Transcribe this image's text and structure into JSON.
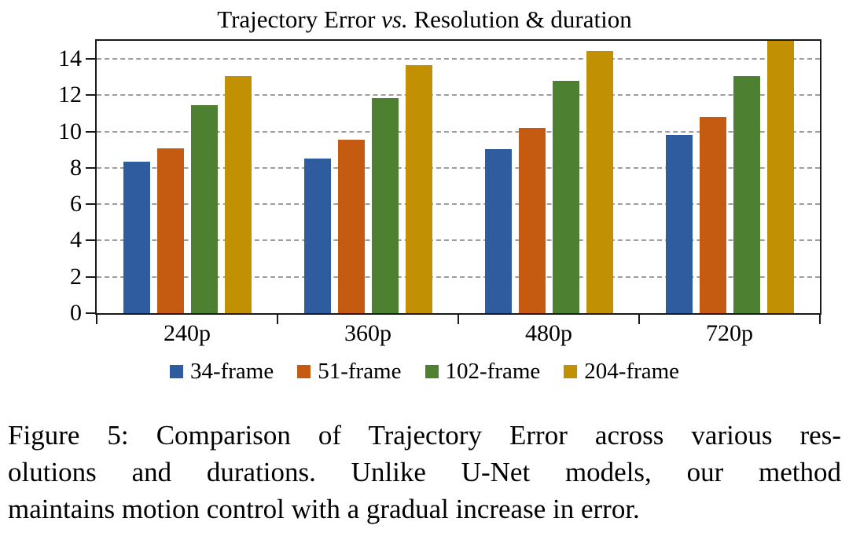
{
  "title": {
    "prefix": "Trajectory Error ",
    "vs": "vs.",
    "suffix": " Resolution & duration"
  },
  "chart_data": {
    "type": "bar",
    "title": "Trajectory Error vs. Resolution & duration",
    "categories": [
      "240p",
      "360p",
      "480p",
      "720p"
    ],
    "series": [
      {
        "name": "34-frame",
        "color": "#2E5C9F",
        "values": [
          8.35,
          8.5,
          9.05,
          9.8
        ]
      },
      {
        "name": "51-frame",
        "color": "#C55A11",
        "values": [
          9.1,
          9.55,
          10.2,
          10.8
        ]
      },
      {
        "name": "102-frame",
        "color": "#4E8032",
        "values": [
          11.45,
          11.85,
          12.8,
          13.05
        ]
      },
      {
        "name": "204-frame",
        "color": "#C19103",
        "values": [
          13.05,
          13.65,
          14.45,
          15.0
        ]
      }
    ],
    "xlabel": "",
    "ylabel": "",
    "ylim": [
      0,
      15
    ],
    "yticks": [
      0,
      2,
      4,
      6,
      8,
      10,
      12,
      14
    ],
    "grid": "horizontal-dashed",
    "legend_position": "bottom"
  },
  "caption": {
    "lines": [
      "Figure 5: Comparison of Trajectory Error across various res-",
      "olutions and durations. Unlike U-Net models, our method",
      "maintains motion control with a gradual increase in error."
    ]
  },
  "colors": {
    "background": "#FFFFFF",
    "axis": "#1A1A1A",
    "gridline": "#9E9E9E",
    "text": "#000000"
  }
}
